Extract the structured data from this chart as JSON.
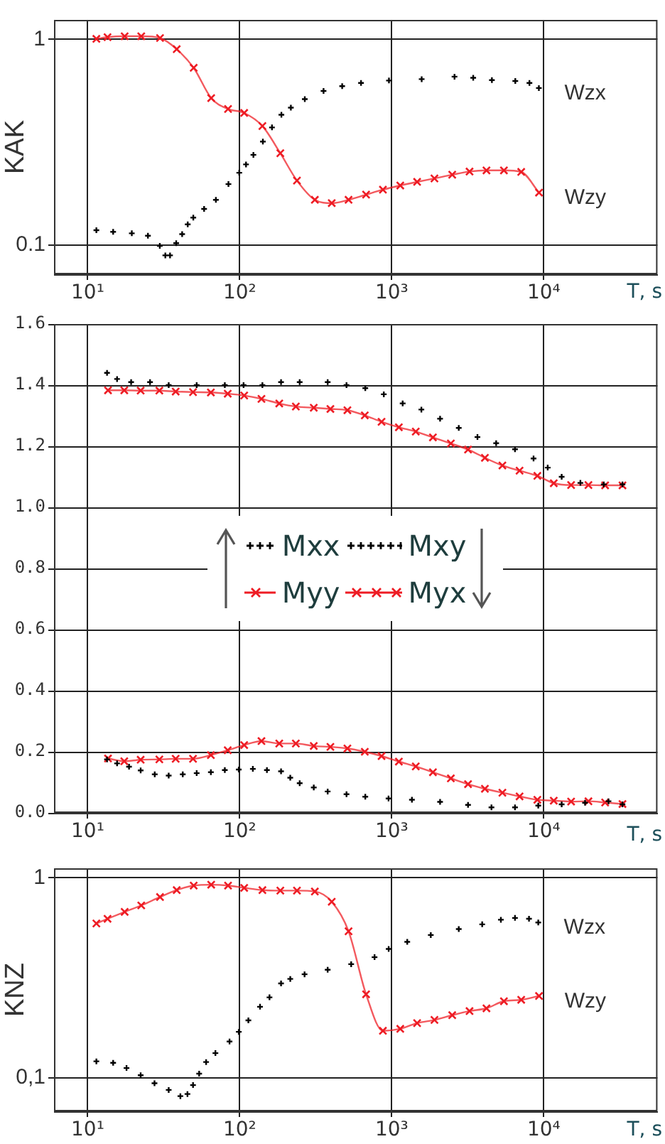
{
  "chart_data": [
    {
      "type": "line",
      "ylabel": "KAK",
      "xlabel": "T, s",
      "log": "xy",
      "grid": true,
      "xlim": [
        6,
        56000
      ],
      "xticks": [
        {
          "value": 10,
          "label": "10¹"
        },
        {
          "value": 100,
          "label": "10²"
        },
        {
          "value": 1000,
          "label": "10³"
        },
        {
          "value": 10000,
          "label": "10⁴"
        }
      ],
      "ylim": [
        0.072,
        1.25
      ],
      "yticks": [
        1,
        0.1
      ],
      "series": [
        {
          "name": "Wzx",
          "type": "scatter",
          "color": "#000000",
          "marker": "cross",
          "x": [
            11.4,
            14.7,
            19.5,
            24.9,
            29.8,
            32.4,
            34.8,
            38.2,
            41.8,
            45.5,
            49.5,
            58.3,
            69.7,
            84.3,
            99.3,
            110,
            123,
            142,
            163,
            188,
            217,
            268,
            356,
            472,
            628,
            959,
            1574,
            2588,
            3436,
            4560,
            6500,
            8054,
            9290
          ],
          "values": [
            0.118,
            0.116,
            0.114,
            0.111,
            0.099,
            0.089,
            0.089,
            0.102,
            0.113,
            0.126,
            0.136,
            0.15,
            0.166,
            0.198,
            0.225,
            0.247,
            0.275,
            0.319,
            0.374,
            0.431,
            0.467,
            0.514,
            0.563,
            0.594,
            0.616,
            0.633,
            0.643,
            0.661,
            0.653,
            0.636,
            0.63,
            0.616,
            0.582
          ]
        },
        {
          "name": "Wzy",
          "color": "#ee1c24",
          "marker": "cross",
          "x": [
            11.4,
            13.5,
            17.5,
            22.5,
            29.9,
            38.5,
            49.8,
            64.9,
            83.8,
            107,
            141,
            185,
            238,
            312,
            403,
            520,
            678,
            875,
            1138,
            1469,
            1910,
            2500,
            3250,
            4200,
            5470,
            7110,
            9310
          ],
          "values": [
            1.01,
            1.03,
            1.04,
            1.04,
            1.02,
            0.9,
            0.73,
            0.52,
            0.46,
            0.44,
            0.38,
            0.28,
            0.206,
            0.166,
            0.16,
            0.166,
            0.176,
            0.186,
            0.195,
            0.203,
            0.211,
            0.22,
            0.228,
            0.231,
            0.231,
            0.227,
            0.18
          ]
        }
      ]
    },
    {
      "type": "line",
      "xlabel": "T, s",
      "log": "x",
      "grid": true,
      "legend": "center",
      "xlim": [
        6,
        56000
      ],
      "xticks": [
        {
          "value": 10,
          "label": "10¹"
        },
        {
          "value": 100,
          "label": "10²"
        },
        {
          "value": 1000,
          "label": "10³"
        },
        {
          "value": 10000,
          "label": "10⁴"
        }
      ],
      "ylim": [
        0,
        1.6
      ],
      "yticks": [
        {
          "value": 0,
          "label": "0.0"
        },
        0.2,
        0.4,
        0.6,
        0.8,
        {
          "value": 1,
          "label": "1.0"
        },
        1.2,
        1.4,
        1.6
      ],
      "series": [
        {
          "name": "Mxx",
          "type": "scatter",
          "color": "#000000",
          "marker": "cross",
          "x": [
            13.4,
            15.6,
            19.3,
            25.7,
            34.1,
            52.1,
            79.8,
            106,
            141,
            187,
            248,
            379,
            504,
            670,
            887,
            1180,
            1567,
            2080,
            2761,
            3664,
            4864,
            6471,
            8570,
            10620,
            13120,
            17420,
            24830,
            32960
          ],
          "values": [
            1.44,
            1.42,
            1.41,
            1.41,
            1.4,
            1.4,
            1.4,
            1.4,
            1.4,
            1.41,
            1.41,
            1.41,
            1.4,
            1.39,
            1.37,
            1.34,
            1.32,
            1.29,
            1.26,
            1.23,
            1.21,
            1.19,
            1.16,
            1.13,
            1.1,
            1.08,
            1.075,
            1.075
          ]
        },
        {
          "name": "Mxy",
          "type": "scatter",
          "color": "#000000",
          "marker": "cross",
          "x": [
            13.4,
            15.6,
            18.7,
            22.3,
            27.6,
            34.1,
            42.2,
            52.1,
            64.6,
            79.8,
            98.6,
            122,
            151,
            187,
            215,
            248,
            307,
            379,
            504,
            670,
            953,
            1358,
            2080,
            3177,
            4529,
            6471,
            9204,
            13120,
            18700,
            26670,
            32960
          ],
          "values": [
            0.175,
            0.162,
            0.151,
            0.139,
            0.126,
            0.122,
            0.126,
            0.13,
            0.133,
            0.14,
            0.142,
            0.144,
            0.14,
            0.136,
            0.115,
            0.097,
            0.083,
            0.07,
            0.061,
            0.053,
            0.047,
            0.043,
            0.036,
            0.026,
            0.018,
            0.018,
            0.024,
            0.028,
            0.033,
            0.038,
            0.028
          ]
        },
        {
          "name": "Myy",
          "color": "#ee1c24",
          "marker": "cross",
          "x": [
            13.6,
            17.4,
            22.3,
            29.6,
            37.9,
            49.3,
            64.6,
            83.4,
            107,
            139,
            182,
            234,
            307,
            395,
            511,
            665,
            857,
            1114,
            1439,
            1866,
            2449,
            3177,
            4102,
            5346,
            6934,
            9078,
            11640,
            15140,
            19680,
            25350,
            32960
          ],
          "values": [
            1.383,
            1.383,
            1.382,
            1.382,
            1.379,
            1.377,
            1.376,
            1.372,
            1.366,
            1.355,
            1.34,
            1.33,
            1.326,
            1.322,
            1.318,
            1.301,
            1.28,
            1.262,
            1.248,
            1.229,
            1.209,
            1.189,
            1.162,
            1.137,
            1.12,
            1.103,
            1.079,
            1.073,
            1.073,
            1.072,
            1.072
          ]
        },
        {
          "name": "Myx",
          "color": "#ee1c24",
          "marker": "cross",
          "x": [
            13.6,
            17.4,
            22.3,
            29.6,
            37.9,
            49.3,
            64.6,
            83.4,
            107,
            139,
            182,
            234,
            307,
            395,
            511,
            665,
            857,
            1114,
            1439,
            1866,
            2449,
            3177,
            4102,
            5346,
            6934,
            9078,
            11640,
            15140,
            19680,
            25350,
            32960
          ],
          "values": [
            0.178,
            0.169,
            0.174,
            0.175,
            0.177,
            0.177,
            0.189,
            0.205,
            0.222,
            0.235,
            0.227,
            0.227,
            0.219,
            0.216,
            0.211,
            0.2,
            0.186,
            0.168,
            0.152,
            0.133,
            0.113,
            0.094,
            0.079,
            0.066,
            0.054,
            0.043,
            0.04,
            0.037,
            0.038,
            0.034,
            0.029
          ]
        }
      ]
    },
    {
      "type": "line",
      "ylabel": "KNZ",
      "xlabel": "T, s",
      "log": "xy",
      "grid": true,
      "xlim": [
        6,
        56000
      ],
      "xticks": [
        {
          "value": 10,
          "label": "10¹"
        },
        {
          "value": 100,
          "label": "10²"
        },
        {
          "value": 1000,
          "label": "10³"
        },
        {
          "value": 10000,
          "label": "10⁴"
        }
      ],
      "ylim": [
        0.068,
        1.12
      ],
      "yticks": [
        1,
        {
          "value": 0.1,
          "label": "0,1"
        }
      ],
      "series": [
        {
          "name": "Wzx",
          "type": "scatter",
          "color": "#000000",
          "marker": "cross",
          "x": [
            11.4,
            14.7,
            18.0,
            22.3,
            27.5,
            34.1,
            40.7,
            45.3,
            49.3,
            54.1,
            60.1,
            69.2,
            85.7,
            98.6,
            114,
            136,
            157,
            187,
            215,
            267,
            379,
            541,
            771,
            955,
            1265,
            1807,
            2761,
            3936,
            5224,
            6471,
            8000,
            9204
          ],
          "values": [
            0.121,
            0.119,
            0.112,
            0.103,
            0.094,
            0.087,
            0.081,
            0.083,
            0.092,
            0.105,
            0.12,
            0.133,
            0.152,
            0.17,
            0.194,
            0.227,
            0.253,
            0.297,
            0.313,
            0.33,
            0.348,
            0.371,
            0.402,
            0.442,
            0.48,
            0.519,
            0.556,
            0.587,
            0.619,
            0.632,
            0.626,
            0.6
          ]
        },
        {
          "name": "Wzy",
          "color": "#ee1c24",
          "marker": "cross",
          "x": [
            11.4,
            13.5,
            17.5,
            22.5,
            29.9,
            38.5,
            49.8,
            64.9,
            83.8,
            107,
            141,
            185,
            238,
            312,
            403,
            520,
            678,
            875,
            1138,
            1469,
            1910,
            2500,
            3250,
            4200,
            5470,
            7110,
            9310
          ],
          "values": [
            0.593,
            0.626,
            0.678,
            0.73,
            0.804,
            0.871,
            0.918,
            0.927,
            0.918,
            0.894,
            0.871,
            0.866,
            0.866,
            0.857,
            0.762,
            0.542,
            0.262,
            0.172,
            0.176,
            0.188,
            0.195,
            0.206,
            0.216,
            0.223,
            0.242,
            0.246,
            0.257
          ]
        }
      ]
    }
  ]
}
